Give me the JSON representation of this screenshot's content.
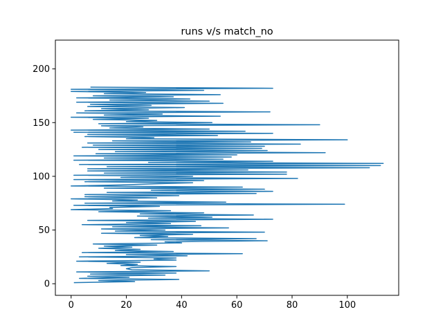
{
  "chart_data": {
    "type": "line",
    "title": "runs v/s match_no",
    "xlabel": "",
    "ylabel": "",
    "xlim": [
      -5.7,
      118.6
    ],
    "ylim": [
      -10.8,
      226.8
    ],
    "xticks": [
      0,
      20,
      40,
      60,
      80,
      100
    ],
    "yticks": [
      0,
      50,
      100,
      150,
      200
    ],
    "grid": false,
    "line_color": "#1f77b4",
    "series": [
      {
        "x": [
          1,
          23,
          10,
          39,
          3,
          21,
          6,
          34,
          7,
          38,
          2,
          50,
          22,
          20,
          22,
          38,
          18,
          24,
          13,
          25,
          2,
          38,
          30,
          38,
          3,
          42,
          20,
          62,
          4,
          37,
          16,
          25,
          10,
          22,
          12,
          31,
          8,
          40,
          34,
          71,
          29,
          67,
          23,
          35,
          25,
          44,
          11,
          70,
          16,
          34,
          11,
          57,
          15,
          47,
          4,
          36,
          20,
          45,
          6,
          73,
          28,
          51,
          24,
          66,
          25,
          48,
          10,
          36,
          0,
          15,
          14,
          32,
          1,
          99,
          5,
          56,
          15,
          24,
          0,
          31,
          5,
          39,
          5,
          67,
          13,
          73,
          29,
          70,
          12,
          62,
          0,
          18,
          30,
          44,
          5,
          48,
          1,
          82,
          18,
          44,
          1,
          78,
          12,
          78,
          6,
          64,
          6,
          108,
          13,
          112,
          3,
          113,
          28,
          73,
          1,
          55,
          12,
          58,
          1,
          60,
          9,
          92,
          16,
          71,
          10,
          69,
          4,
          70,
          8,
          83,
          6,
          65,
          15,
          100,
          20,
          30,
          5,
          53,
          6,
          73,
          1,
          63,
          0,
          50,
          14,
          26,
          11,
          90,
          10,
          51,
          20,
          31,
          8,
          28,
          0,
          54,
          12,
          33,
          2,
          72,
          5,
          28,
          11,
          41,
          6,
          29,
          7,
          55,
          2,
          50,
          14,
          43,
          2,
          37,
          8,
          54,
          12,
          27,
          0,
          48,
          0,
          73,
          7
        ],
        "y": [
          1,
          2,
          3,
          4,
          5,
          6,
          7,
          8,
          9,
          10,
          11,
          12,
          13,
          14,
          15,
          16,
          17,
          18,
          19,
          20,
          21,
          22,
          23,
          24,
          25,
          26,
          27,
          28,
          29,
          30,
          31,
          32,
          33,
          34,
          35,
          36,
          37,
          38,
          39,
          40,
          41,
          42,
          43,
          44,
          45,
          46,
          47,
          48,
          49,
          50,
          51,
          52,
          53,
          54,
          55,
          56,
          57,
          58,
          59,
          60,
          61,
          62,
          63,
          64,
          65,
          66,
          67,
          68,
          69,
          70,
          71,
          72,
          73,
          74,
          75,
          76,
          77,
          78,
          79,
          80,
          81,
          82,
          83,
          84,
          85,
          86,
          87,
          88,
          89,
          90,
          91,
          92,
          93,
          94,
          95,
          96,
          97,
          98,
          99,
          100,
          101,
          102,
          103,
          104,
          105,
          106,
          107,
          108,
          109,
          110,
          111,
          112,
          113,
          114,
          115,
          116,
          117,
          118,
          119,
          120,
          121,
          122,
          123,
          124,
          125,
          126,
          127,
          128,
          129,
          130,
          131,
          132,
          133,
          134,
          135,
          136,
          137,
          138,
          139,
          140,
          141,
          142,
          143,
          144,
          145,
          146,
          147,
          148,
          149,
          150,
          151,
          152,
          153,
          154,
          155,
          156,
          157,
          158,
          159,
          160,
          161,
          162,
          163,
          164,
          165,
          166,
          167,
          168,
          169,
          170,
          171,
          172,
          173,
          174,
          175,
          176,
          177,
          178,
          179,
          180,
          181,
          182,
          183
        ]
      }
    ]
  }
}
